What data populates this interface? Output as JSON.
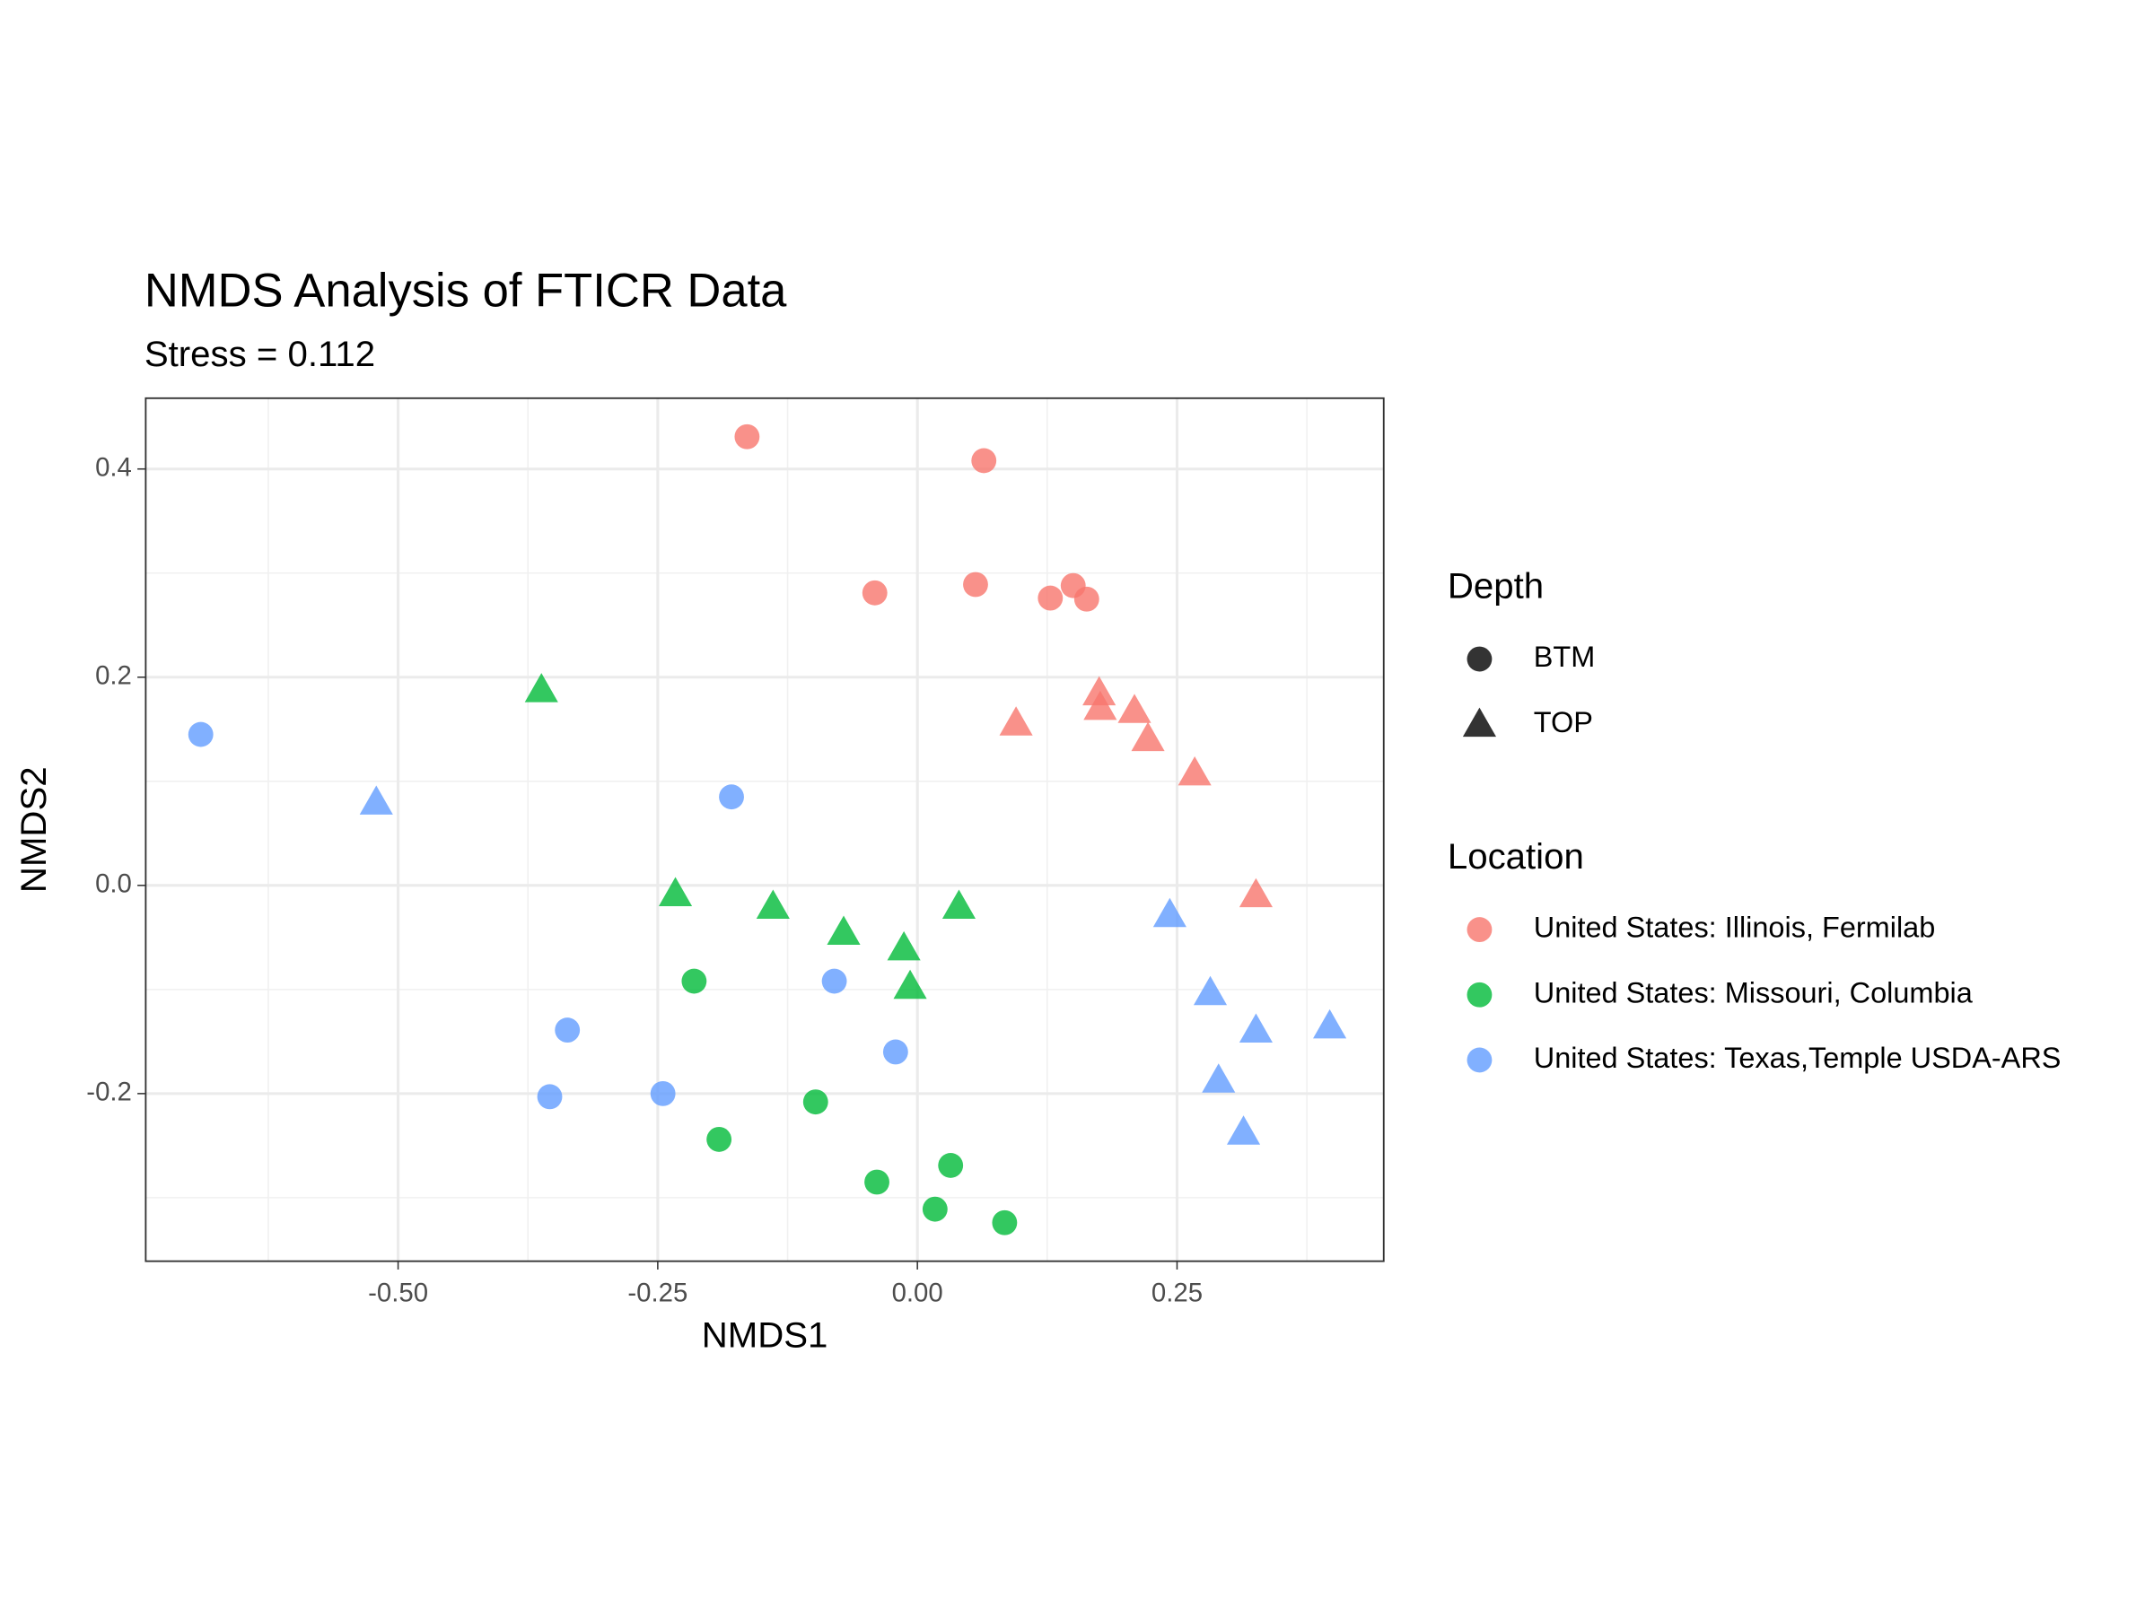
{
  "chart_data": {
    "type": "scatter",
    "title": "NMDS Analysis of FTICR Data",
    "subtitle": "Stress = 0.112",
    "x_label": "NMDS1",
    "y_label": "NMDS2",
    "xlim": [
      -0.743,
      0.449
    ],
    "ylim": [
      -0.361,
      0.468
    ],
    "xticks": [
      {
        "value": -0.5,
        "label": "-0.50"
      },
      {
        "value": -0.25,
        "label": "-0.25"
      },
      {
        "value": 0,
        "label": "0.00"
      },
      0.25
    ],
    "yticks": [
      -0.2,
      {
        "value": 0,
        "label": "0.0"
      },
      0.2,
      0.4
    ],
    "x_minor_grid": [
      -0.625,
      -0.375,
      -0.125,
      0.125,
      0.375
    ],
    "y_minor_grid": [
      -0.3,
      -0.1,
      0.1,
      0.3
    ],
    "grid": true,
    "shape_legend": {
      "title": "Depth",
      "levels": [
        {
          "name": "BTM",
          "shape": "circle"
        },
        {
          "name": "TOP",
          "shape": "triangle"
        }
      ]
    },
    "color_legend_title": "Location",
    "series": [
      {
        "name": "United States: Illinois, Fermilab",
        "color": "#F8766D",
        "groups": [
          {
            "shape": "circle",
            "x": [
              -0.164,
              0.064,
              -0.041,
              0.056,
              0.128,
              0.15,
              0.163
            ],
            "values": [
              0.431,
              0.408,
              0.281,
              0.289,
              0.276,
              0.288,
              0.275
            ]
          },
          {
            "shape": "triangle",
            "x": [
              0.175,
              0.176,
              0.209,
              0.222,
              0.267,
              0.095,
              0.326
            ],
            "values": [
              0.185,
              0.171,
              0.168,
              0.141,
              0.108,
              0.156,
              -0.009
            ]
          }
        ]
      },
      {
        "name": "United States: Missouri, Columbia",
        "color": "#00BA38",
        "groups": [
          {
            "shape": "circle",
            "x": [
              -0.215,
              -0.191,
              -0.098,
              -0.039,
              0.032,
              0.017,
              0.084
            ],
            "values": [
              -0.092,
              -0.244,
              -0.208,
              -0.285,
              -0.269,
              -0.311,
              -0.324
            ]
          },
          {
            "shape": "triangle",
            "x": [
              -0.362,
              -0.233,
              -0.139,
              -0.071,
              -0.013,
              -0.007,
              0.04
            ],
            "values": [
              0.188,
              -0.008,
              -0.02,
              -0.045,
              -0.06,
              -0.097,
              -0.02
            ]
          }
        ]
      },
      {
        "name": "United States: Texas,Temple USDA-ARS",
        "color": "#619CFF",
        "groups": [
          {
            "shape": "circle",
            "x": [
              -0.69,
              -0.179,
              -0.08,
              -0.021,
              -0.337,
              -0.354,
              -0.245
            ],
            "values": [
              0.145,
              0.085,
              -0.092,
              -0.16,
              -0.139,
              -0.203,
              -0.2
            ]
          },
          {
            "shape": "triangle",
            "x": [
              -0.521,
              0.243,
              0.282,
              0.326,
              0.397,
              0.29,
              0.314
            ],
            "values": [
              0.08,
              -0.028,
              -0.103,
              -0.139,
              -0.135,
              -0.187,
              -0.237
            ]
          }
        ]
      }
    ]
  }
}
